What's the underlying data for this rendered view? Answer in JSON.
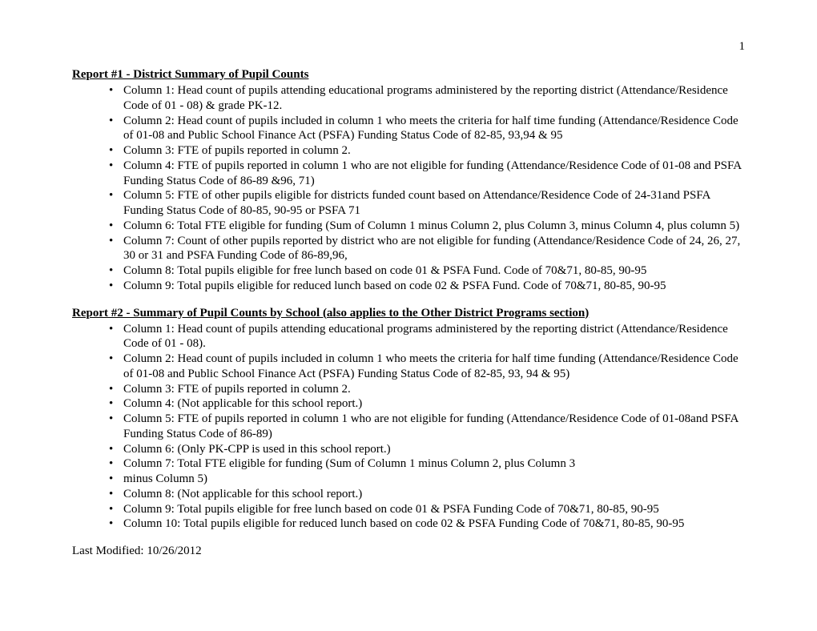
{
  "page_number": "1",
  "report1": {
    "heading": "Report #1 - District Summary of Pupil Counts",
    "bullets": [
      "Column 1:  Head count of pupils attending educational programs administered by the reporting district (Attendance/Residence Code of 01 - 08) & grade PK-12.",
      "Column 2:  Head count of pupils included in column 1 who meets the criteria for half time funding (Attendance/Residence Code of 01-08 and Public School Finance Act (PSFA) Funding Status Code of 82-85, 93,94 & 95",
      "Column 3:  FTE of pupils reported in column 2.",
      "Column 4:  FTE of pupils reported in column 1 who are not eligible for funding (Attendance/Residence Code of 01-08 and PSFA Funding Status Code of 86-89 &96, 71)",
      "Column 5:  FTE of other pupils eligible for districts funded count based on Attendance/Residence Code of 24-31and PSFA Funding Status Code of 80-85, 90-95 or  PSFA 71",
      "Column 6:  Total FTE eligible for funding (Sum of Column 1 minus Column 2, plus Column 3, minus Column 4, plus column 5)",
      "Column 7:  Count of other pupils reported by district who are not eligible for funding (Attendance/Residence Code of 24, 26, 27, 30 or 31 and PSFA Funding Code of 86-89,96,",
      "Column 8:  Total pupils eligible for free lunch based on code 01 & PSFA Fund. Code of 70&71, 80-85, 90-95",
      "Column 9: Total pupils eligible for reduced lunch based on code 02 & PSFA Fund. Code of 70&71, 80-85, 90-95"
    ]
  },
  "report2": {
    "heading": "Report #2 - Summary of Pupil Counts by School (also applies to the Other District Programs section)",
    "bullets": [
      "Column 1:  Head count of pupils attending educational programs administered by the reporting district (Attendance/Residence Code of 01 - 08).",
      "Column 2:  Head count of pupils included in column 1 who meets the criteria for half time funding (Attendance/Residence Code of 01-08 and Public School Finance Act (PSFA) Funding Status Code of 82-85, 93, 94 & 95)",
      "Column 3:  FTE of pupils reported in column 2.",
      "Column 4:  (Not applicable for this school report.)",
      "Column 5:  FTE of pupils reported in column 1 who are not eligible for funding (Attendance/Residence Code of 01-08and PSFA Funding Status Code of 86-89)",
      "Column 6:   (Only PK-CPP is used in this school report.)",
      "Column 7:  Total FTE eligible for funding (Sum of Column 1 minus Column 2, plus Column 3",
      " minus Column 5)",
      "Column 8:  (Not applicable for this school report.)",
      "Column 9:  Total pupils eligible for free lunch based on code 01 & PSFA Funding Code of 70&71, 80-85, 90-95",
      "Column 10: Total pupils eligible for reduced lunch based on code 02 & PSFA Funding Code of 70&71, 80-85, 90-95"
    ]
  },
  "footer": "Last Modified:   10/26/2012"
}
